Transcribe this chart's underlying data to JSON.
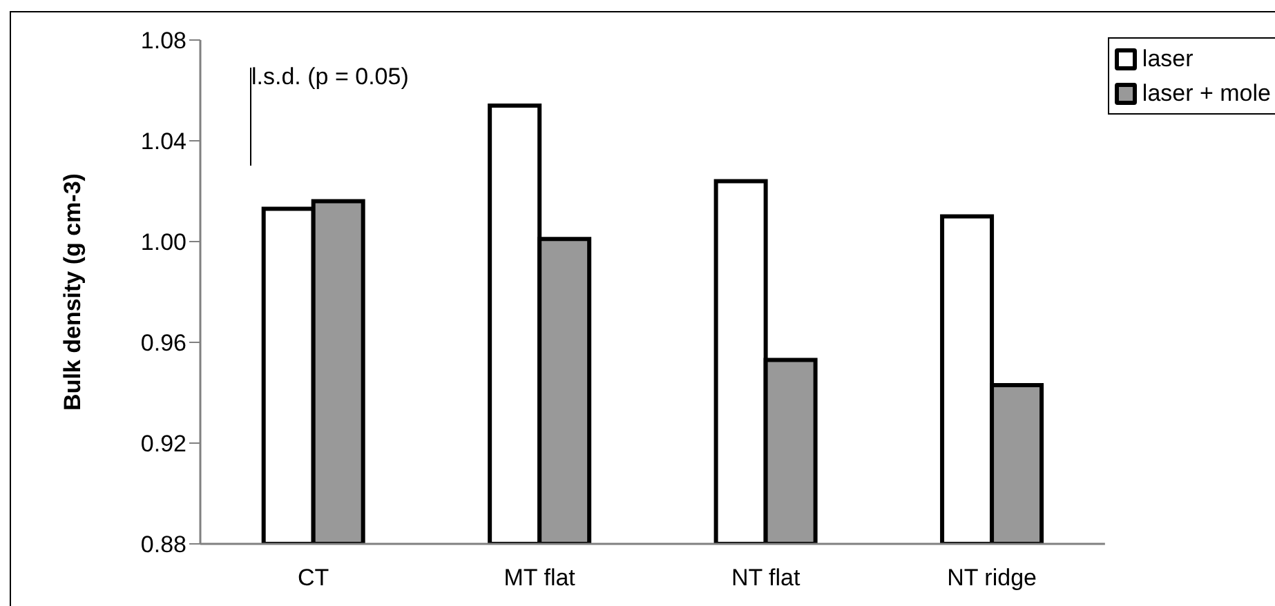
{
  "chart_data": {
    "type": "bar",
    "ylabel": "Bulk density (g cm-3)",
    "categories": [
      "CT",
      "MT flat",
      "NT flat",
      "NT ridge"
    ],
    "series": [
      {
        "name": "laser",
        "color": "#ffffff",
        "values": [
          1.013,
          1.054,
          1.024,
          1.01
        ]
      },
      {
        "name": "laser + mole",
        "color": "#999999",
        "values": [
          1.016,
          1.001,
          0.953,
          0.943
        ]
      }
    ],
    "ylim": [
      0.88,
      1.08
    ],
    "yticks": [
      0.88,
      0.92,
      0.96,
      {
        "value": 1,
        "label": "1.00"
      },
      1.04,
      1.08
    ],
    "grid": false,
    "legend": "top right",
    "annotations": [
      "l.s.d. (p = 0.05)"
    ]
  }
}
